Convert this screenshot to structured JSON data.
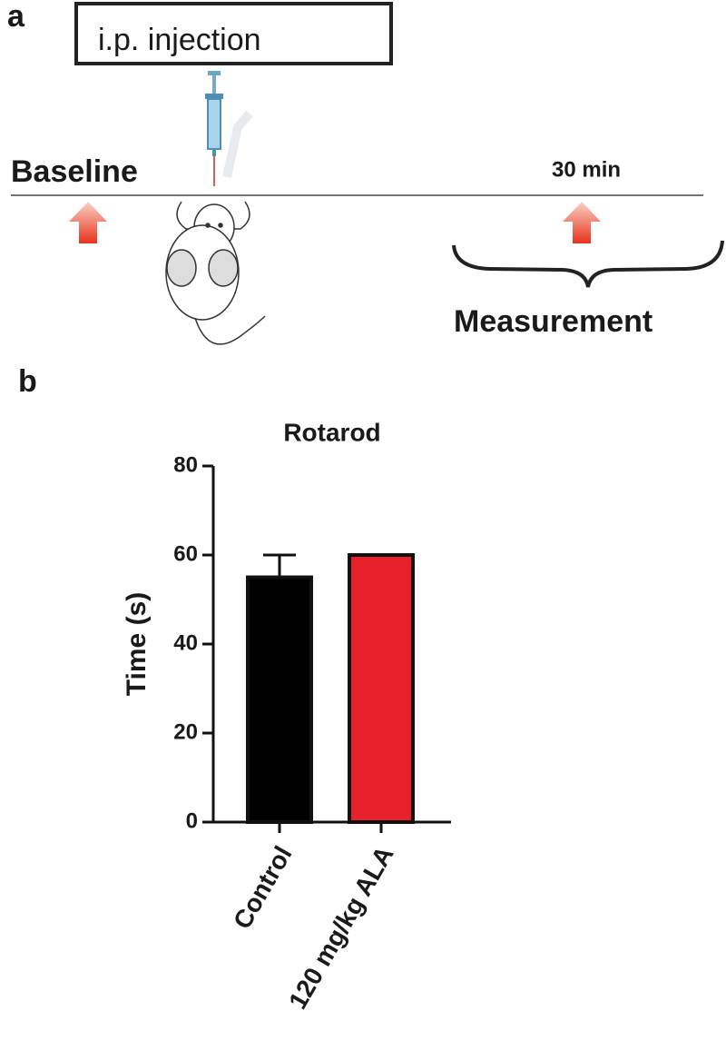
{
  "panel_a": {
    "label": "a",
    "box": "i.p.  injection",
    "start": "Baseline",
    "time": "30 min",
    "phase": "Measurement"
  },
  "panel_b": {
    "label": "b"
  },
  "chart_data": {
    "type": "bar",
    "title": "Rotarod",
    "y_label": "Time (s)",
    "categories": [
      "Control",
      "120 mg/kg ALA"
    ],
    "values": [
      55,
      60
    ],
    "errors": [
      5,
      0
    ],
    "colors": [
      "#000000",
      "#e8202a"
    ],
    "ylim": [
      0,
      80
    ],
    "yticks": [
      0,
      20,
      40,
      60,
      80
    ]
  }
}
